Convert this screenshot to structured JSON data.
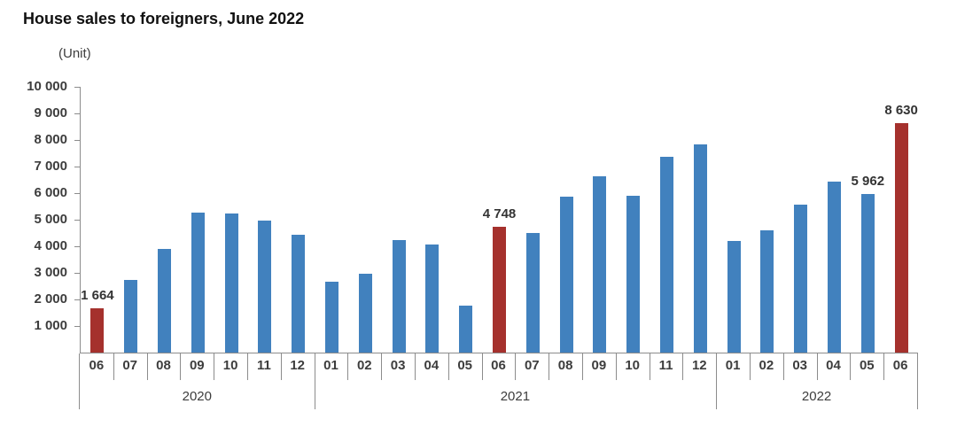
{
  "header": {
    "title": "House sales to foreigners, June 2022",
    "unit_label": "(Unit)"
  },
  "colors": {
    "bar": "#4181be",
    "highlight": "#a5312d",
    "axis": "#8c8c8c",
    "text": "#3d3d3d"
  },
  "chart_data": {
    "type": "bar",
    "title": "House sales to foreigners, June 2022",
    "ylabel": "(Unit)",
    "ylim": [
      0,
      10000
    ],
    "ytick_step": 1000,
    "grid": false,
    "legend": "none",
    "yticks": [
      {
        "value": 1000,
        "label": "1 000"
      },
      {
        "value": 2000,
        "label": "2 000"
      },
      {
        "value": 3000,
        "label": "3 000"
      },
      {
        "value": 4000,
        "label": "4 000"
      },
      {
        "value": 5000,
        "label": "5 000"
      },
      {
        "value": 6000,
        "label": "6 000"
      },
      {
        "value": 7000,
        "label": "7 000"
      },
      {
        "value": 8000,
        "label": "8 000"
      },
      {
        "value": 9000,
        "label": "9 000"
      },
      {
        "value": 10000,
        "label": "10 000"
      }
    ],
    "categories": [
      "06",
      "07",
      "08",
      "09",
      "10",
      "11",
      "12",
      "01",
      "02",
      "03",
      "04",
      "05",
      "06",
      "07",
      "08",
      "09",
      "10",
      "11",
      "12",
      "01",
      "02",
      "03",
      "04",
      "05",
      "06"
    ],
    "year_groups": [
      {
        "label": "2020",
        "months": 7
      },
      {
        "label": "2021",
        "months": 12
      },
      {
        "label": "2022",
        "months": 6
      }
    ],
    "values": [
      1664,
      2741,
      3893,
      5269,
      5248,
      4962,
      4427,
      2675,
      2964,
      4248,
      4077,
      1776,
      4748,
      4508,
      5866,
      6630,
      5893,
      7363,
      7841,
      4186,
      4591,
      5567,
      6447,
      5962,
      8630
    ],
    "highlight_indexes": [
      0,
      12,
      24
    ],
    "data_labels": [
      {
        "index": 0,
        "text": "1 664"
      },
      {
        "index": 12,
        "text": "4 748"
      },
      {
        "index": 23,
        "text": "5 962"
      },
      {
        "index": 24,
        "text": "8 630"
      }
    ]
  }
}
